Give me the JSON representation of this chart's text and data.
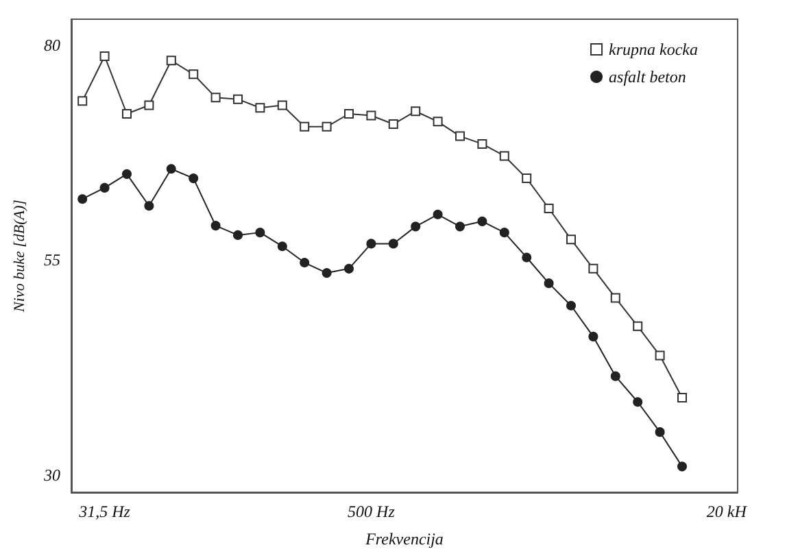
{
  "chart_data": {
    "type": "line",
    "xlabel": "Frekvencija",
    "ylabel": "Nivo buke [dB(A)]",
    "categories": [
      null,
      "31,5 Hz",
      null,
      null,
      null,
      null,
      null,
      null,
      null,
      null,
      null,
      null,
      null,
      "500 Hz",
      null,
      null,
      null,
      null,
      null,
      null,
      null,
      null,
      null,
      null,
      null,
      null,
      null,
      null,
      null,
      "20 kH"
    ],
    "series": [
      {
        "name": "krupna kocka",
        "color": "#333333",
        "marker": "square",
        "values": [
          73.5,
          78.7,
          72,
          73,
          78.2,
          76.6,
          73.9,
          73.7,
          72.7,
          73,
          70.5,
          70.5,
          72,
          71.8,
          70.8,
          72.3,
          71.1,
          69.4,
          68.5,
          67.1,
          64.5,
          61,
          57.4,
          54,
          50.6,
          47.3,
          43.9,
          39,
          null,
          null
        ]
      },
      {
        "name": "asfalt beton",
        "color": "#222222",
        "marker": "circle",
        "values": [
          62.1,
          63.4,
          65,
          61.3,
          65.6,
          64.5,
          59,
          57.9,
          58.2,
          56.6,
          54.7,
          53.5,
          54,
          56.9,
          56.9,
          58.9,
          60.3,
          58.9,
          59.5,
          58.2,
          55.3,
          52.3,
          49.7,
          46.1,
          41.5,
          38.5,
          35,
          31,
          null,
          null
        ]
      }
    ],
    "ylim": [
      28,
      83
    ],
    "yticks": [
      30,
      55,
      80
    ],
    "grid": false,
    "legend": "top right",
    "line_style": "solid"
  }
}
